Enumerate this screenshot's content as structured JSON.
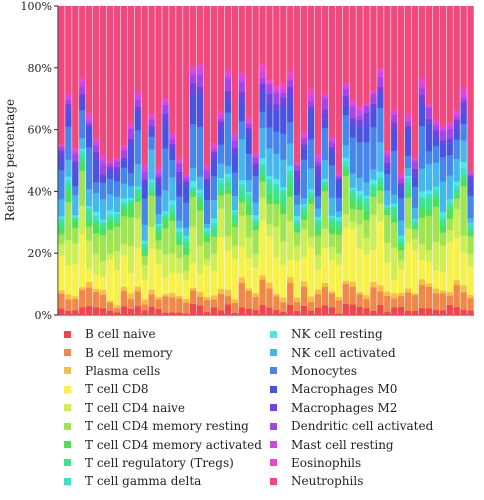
{
  "chart_data": {
    "type": "bar",
    "stacked": true,
    "title": "",
    "xlabel": "",
    "ylabel": "Relative percentage",
    "ylim": [
      0,
      100
    ],
    "yticks": [
      "0%",
      "20%",
      "40%",
      "60%",
      "80%",
      "100%"
    ],
    "legend_position": "bottom",
    "grid": false,
    "sample_count": 60,
    "series": [
      {
        "name": "B cell naive",
        "color": "#f0454d"
      },
      {
        "name": "B cell memory",
        "color": "#f0884b"
      },
      {
        "name": "Plasma cells",
        "color": "#f6bd47"
      },
      {
        "name": "T cell CD8",
        "color": "#f6f14c"
      },
      {
        "name": "T cell CD4 naive",
        "color": "#cdee57"
      },
      {
        "name": "T cell CD4 memory resting",
        "color": "#9ee453"
      },
      {
        "name": "T cell CD4 memory activated",
        "color": "#4fe05a"
      },
      {
        "name": "T cell regulatory (Tregs)",
        "color": "#3fe28f"
      },
      {
        "name": "T cell gamma delta",
        "color": "#3fe0c4"
      },
      {
        "name": "NK cell resting",
        "color": "#4ae8ea"
      },
      {
        "name": "NK cell activated",
        "color": "#46b7ec"
      },
      {
        "name": "Monocytes",
        "color": "#4686ea"
      },
      {
        "name": "Macrophages M0",
        "color": "#4a52e0"
      },
      {
        "name": "Macrophages M2",
        "color": "#6e44e0"
      },
      {
        "name": "Dendritic cell activated",
        "color": "#a446e6"
      },
      {
        "name": "Mast cell resting",
        "color": "#d046e8"
      },
      {
        "name": "Eosinophils",
        "color": "#ee46c9"
      },
      {
        "name": "Neutrophils",
        "color": "#f0497e"
      }
    ]
  }
}
